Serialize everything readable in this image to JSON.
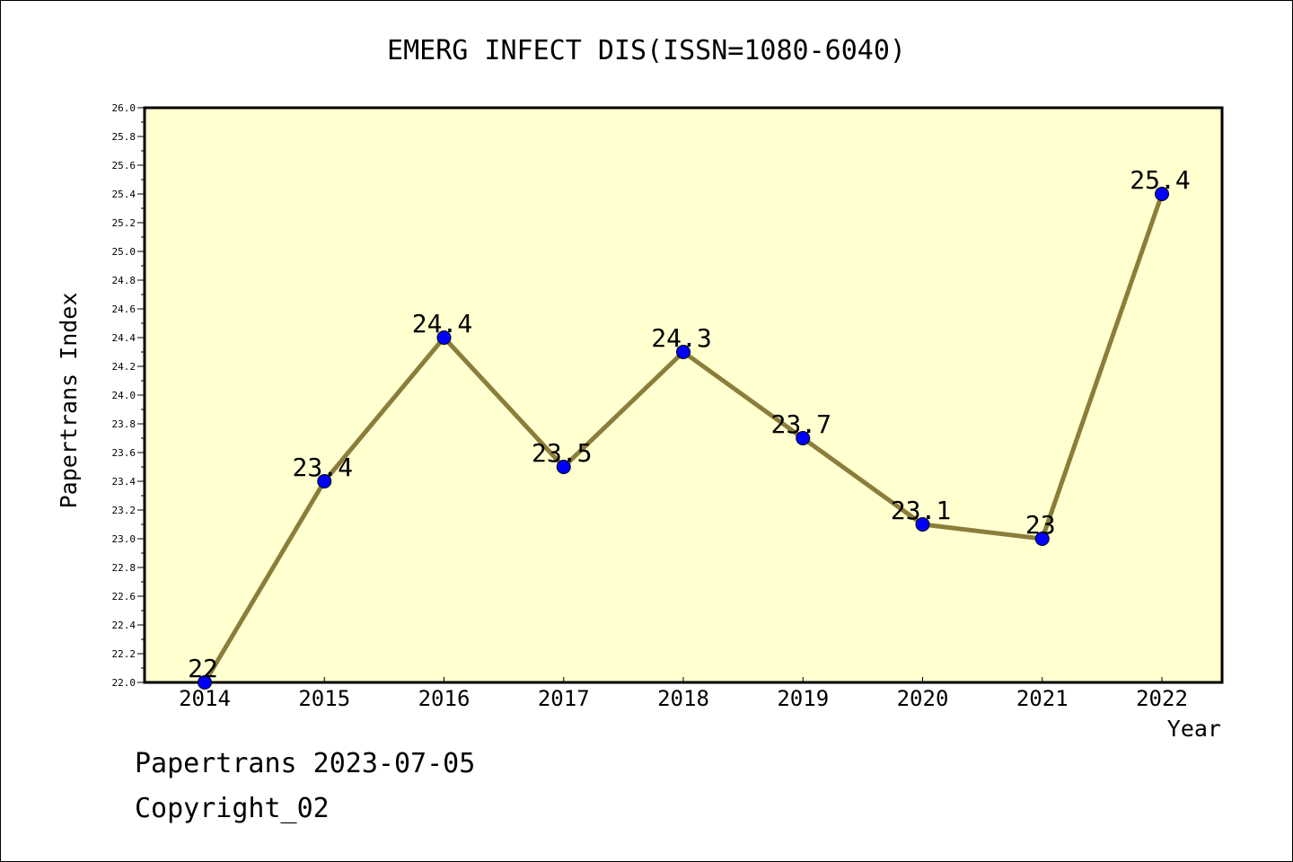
{
  "chart_data": {
    "type": "line",
    "title": "EMERG INFECT DIS(ISSN=1080-6040)",
    "xlabel": "Year",
    "ylabel": "Papertrans Index",
    "categories": [
      "2014",
      "2015",
      "2016",
      "2017",
      "2018",
      "2019",
      "2020",
      "2021",
      "2022"
    ],
    "series": [
      {
        "values": [
          22,
          23.4,
          24.4,
          23.5,
          24.3,
          23.7,
          23.1,
          23,
          25.4
        ],
        "labels": [
          "22",
          "23.4",
          "24.4",
          "23.5",
          "24.3",
          "23.7",
          "23.1",
          "23",
          "25.4"
        ]
      }
    ],
    "ylim": [
      22.0,
      26.0
    ],
    "yticks": [
      "22.0",
      "22.2",
      "22.4",
      "22.6",
      "22.8",
      "23.0",
      "23.2",
      "23.4",
      "23.6",
      "23.8",
      "24.0",
      "24.2",
      "24.4",
      "24.6",
      "24.8",
      "25.0",
      "25.2",
      "25.4",
      "25.6",
      "25.8",
      "26.0"
    ],
    "grid": false,
    "colors": {
      "plot_background": "#ffffd0",
      "line": "#8b7d3a",
      "marker": "#0000ff"
    }
  },
  "footer": {
    "line1": "Papertrans 2023-07-05",
    "line2": "Copyright_02"
  }
}
